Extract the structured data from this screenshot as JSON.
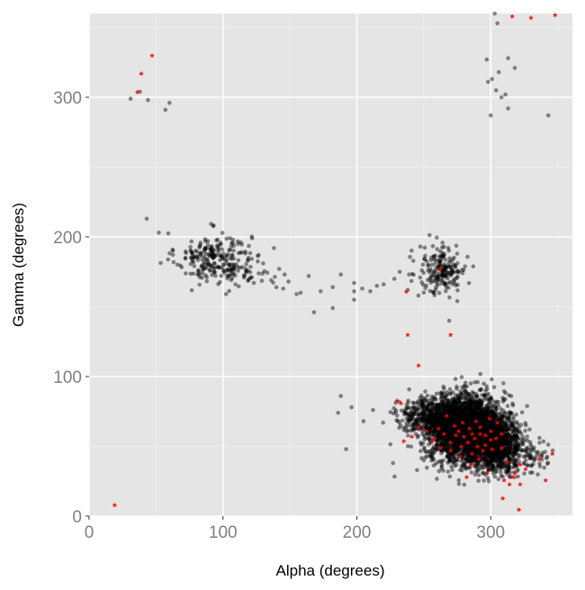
{
  "chart_data": {
    "type": "scatter",
    "xlabel": "Alpha (degrees)",
    "ylabel": "Gamma (degrees)",
    "xlim": [
      0,
      360
    ],
    "ylim": [
      0,
      360
    ],
    "x_ticks": [
      0,
      100,
      200,
      300
    ],
    "y_ticks": [
      0,
      100,
      200,
      300
    ],
    "x_tick_labels": [
      "0",
      "100",
      "200",
      "300"
    ],
    "y_tick_labels": [
      "0",
      "100",
      "200",
      "300"
    ],
    "grid": true,
    "legend": "none",
    "colors": {
      "panel_background": "#e5e5e5",
      "grid_major": "#ffffff",
      "grid_minor": "#f2f2f2",
      "series_1": "#000000",
      "series_2": "#ff0000"
    },
    "series": [
      {
        "marker": "filled-circle",
        "color": "#000000",
        "opacity": 0.45,
        "points": [
          [
            31,
            299
          ],
          [
            38,
            304
          ],
          [
            44,
            298
          ],
          [
            57,
            291
          ],
          [
            60,
            296
          ],
          [
            43,
            213
          ],
          [
            52,
            203
          ],
          [
            303,
            360
          ],
          [
            305,
            353
          ],
          [
            297,
            327
          ],
          [
            306,
            318
          ],
          [
            318,
            321
          ],
          [
            298,
            311
          ],
          [
            301,
            313
          ],
          [
            304,
            305
          ],
          [
            308,
            300
          ],
          [
            313,
            292
          ],
          [
            300,
            287
          ],
          [
            343,
            287
          ],
          [
            313,
            328
          ],
          [
            311,
            302
          ],
          [
            198,
            161
          ],
          [
            173,
            161
          ],
          [
            182,
            164
          ],
          [
            198,
            167
          ],
          [
            210,
            161
          ],
          [
            215,
            165
          ],
          [
            168,
            146
          ],
          [
            182,
            149
          ],
          [
            198,
            155
          ],
          [
            155,
            159
          ],
          [
            164,
            172
          ],
          [
            146,
            173
          ],
          [
            136,
            169
          ],
          [
            123,
            167
          ],
          [
            130,
            181
          ],
          [
            142,
            177
          ],
          [
            149,
            168
          ],
          [
            158,
            160
          ],
          [
            188,
            173
          ],
          [
            204,
            163
          ],
          [
            220,
            166
          ],
          [
            228,
            170
          ],
          [
            232,
            175
          ],
          [
            269,
            140
          ],
          [
            275,
            154
          ],
          [
            238,
            162
          ],
          [
            246,
            158
          ],
          [
            239,
            173
          ],
          [
            188,
            86
          ],
          [
            186,
            74
          ],
          [
            196,
            78
          ],
          [
            192,
            48
          ],
          [
            205,
            68
          ],
          [
            212,
            76
          ],
          [
            227,
            38
          ],
          [
            245,
            33
          ],
          [
            250,
            40
          ]
        ],
        "clusters": [
          {
            "center": [
              93,
              185
            ],
            "spread": [
              14,
              9
            ],
            "count": 230
          },
          {
            "center": [
              120,
              175
            ],
            "spread": [
              12,
              7
            ],
            "count": 40
          },
          {
            "center": [
              264,
              176
            ],
            "spread": [
              9,
              9
            ],
            "count": 190
          },
          {
            "center": [
              283,
              62
            ],
            "spread": [
              14,
              12
            ],
            "count": 2600
          },
          {
            "center": [
              306,
              50
            ],
            "spread": [
              9,
              9
            ],
            "count": 700
          },
          {
            "center": [
              265,
              70
            ],
            "spread": [
              11,
              7
            ],
            "count": 500
          },
          {
            "center": [
              245,
              72
            ],
            "spread": [
              9,
              6
            ],
            "count": 150
          },
          {
            "center": [
              330,
              45
            ],
            "spread": [
              7,
              7
            ],
            "count": 60
          }
        ]
      },
      {
        "marker": "asterisk",
        "color": "#ff0000",
        "opacity": 1,
        "points": [
          [
            19,
            7
          ],
          [
            36,
            303
          ],
          [
            39,
            316
          ],
          [
            47,
            329
          ],
          [
            316,
            357
          ],
          [
            330,
            356
          ],
          [
            348,
            358
          ],
          [
            237,
            160
          ],
          [
            238,
            129
          ],
          [
            262,
            176
          ],
          [
            270,
            129
          ],
          [
            246,
            107
          ],
          [
            230,
            82
          ],
          [
            233,
            80
          ],
          [
            235,
            53
          ],
          [
            241,
            56
          ],
          [
            246,
            63
          ],
          [
            252,
            60
          ],
          [
            258,
            55
          ],
          [
            265,
            58
          ],
          [
            270,
            52
          ],
          [
            276,
            60
          ],
          [
            280,
            56
          ],
          [
            284,
            62
          ],
          [
            288,
            55
          ],
          [
            292,
            58
          ],
          [
            296,
            50
          ],
          [
            300,
            60
          ],
          [
            304,
            55
          ],
          [
            308,
            48
          ],
          [
            312,
            38
          ],
          [
            318,
            30
          ],
          [
            314,
            22
          ],
          [
            309,
            12
          ],
          [
            322,
            22
          ],
          [
            326,
            33
          ],
          [
            336,
            40
          ],
          [
            346,
            44
          ],
          [
            341,
            25
          ],
          [
            321,
            4
          ],
          [
            282,
            27
          ],
          [
            297,
            30
          ],
          [
            273,
            64
          ],
          [
            289,
            67
          ],
          [
            301,
            47
          ],
          [
            270,
            46
          ],
          [
            278,
            49
          ],
          [
            286,
            44
          ],
          [
            292,
            63
          ],
          [
            299,
            69
          ],
          [
            305,
            66
          ],
          [
            261,
            62
          ],
          [
            267,
            71
          ],
          [
            283,
            52
          ],
          [
            290,
            49
          ],
          [
            296,
            57
          ],
          [
            286,
            58
          ],
          [
            279,
            66
          ],
          [
            294,
            46
          ],
          [
            300,
            54
          ],
          [
            308,
            58
          ],
          [
            274,
            57
          ],
          [
            310,
            25
          ],
          [
            316,
            27
          ],
          [
            322,
            36
          ],
          [
            262,
            48
          ],
          [
            256,
            53
          ],
          [
            285,
            36
          ],
          [
            291,
            40
          ],
          [
            277,
            42
          ]
        ]
      }
    ]
  }
}
